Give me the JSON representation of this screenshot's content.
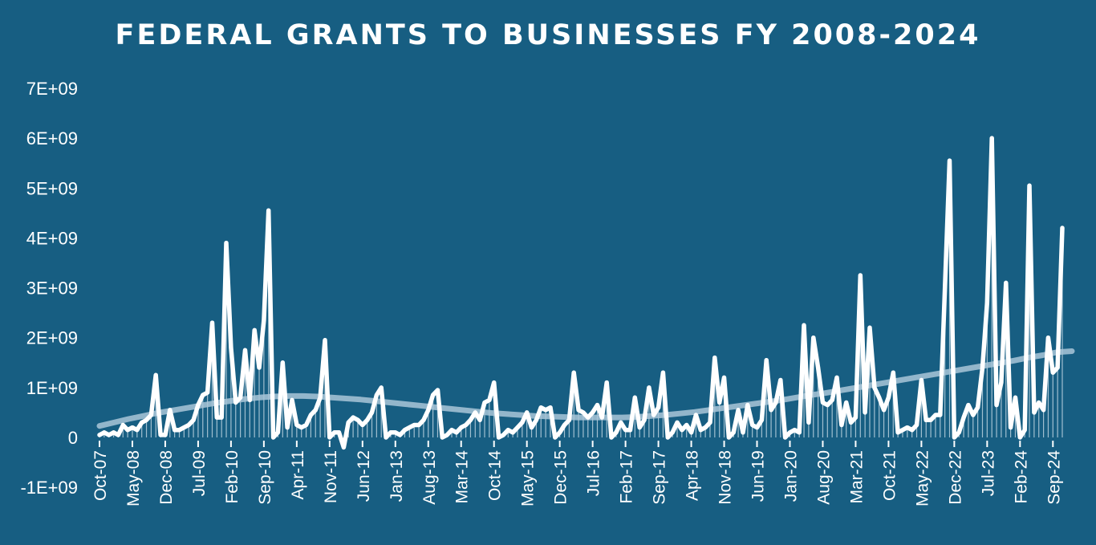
{
  "colors": {
    "background": "#175e82",
    "series_line": "#ffffff",
    "trend_line": "#a9c6d8",
    "drop_lines": "#cfe0ea"
  },
  "chart_data": {
    "type": "line",
    "title": "FEDERAL GRANTS TO BUSINESSES FY 2008-2024",
    "xlabel": "",
    "ylabel": "",
    "ylim": [
      -1000000000,
      7000000000
    ],
    "yticks": [
      7000000000,
      6000000000,
      5000000000,
      4000000000,
      3000000000,
      2000000000,
      1000000000,
      0,
      -1000000000
    ],
    "ytick_labels": [
      "7E+09",
      "6E+09",
      "5E+09",
      "4E+09",
      "3E+09",
      "2E+09",
      "1E+09",
      "0",
      "-1E+09"
    ],
    "xtick_labels": [
      "Oct-07",
      "May-08",
      "Dec-08",
      "Jul-09",
      "Feb-10",
      "Sep-10",
      "Apr-11",
      "Nov-11",
      "Jun-12",
      "Jan-13",
      "Aug-13",
      "Mar-14",
      "Oct-14",
      "May-15",
      "Dec-15",
      "Jul-16",
      "Feb-17",
      "Sep-17",
      "Apr-18",
      "Nov-18",
      "Jun-19",
      "Jan-20",
      "Aug-20",
      "Mar-21",
      "Oct-21",
      "May-22",
      "Dec-22",
      "Jul-23",
      "Feb-24",
      "Sep-24"
    ],
    "xtick_months": [
      0,
      7,
      14,
      21,
      28,
      35,
      42,
      49,
      56,
      63,
      70,
      77,
      84,
      91,
      98,
      105,
      112,
      119,
      126,
      133,
      140,
      147,
      154,
      161,
      168,
      175,
      182,
      189,
      196,
      203
    ],
    "grid": false,
    "legend": "none",
    "series": [
      {
        "x_start": "Oct-07",
        "frequency": "monthly",
        "values": [
          50000000,
          100000000,
          50000000,
          100000000,
          50000000,
          250000000,
          150000000,
          200000000,
          150000000,
          300000000,
          350000000,
          450000000,
          1250000000,
          50000000,
          50000000,
          550000000,
          150000000,
          150000000,
          200000000,
          250000000,
          350000000,
          650000000,
          850000000,
          900000000,
          2300000000,
          400000000,
          400000000,
          3900000000,
          1800000000,
          700000000,
          800000000,
          1750000000,
          750000000,
          2150000000,
          1400000000,
          2350000000,
          4550000000,
          0,
          100000000,
          1500000000,
          200000000,
          750000000,
          250000000,
          200000000,
          250000000,
          450000000,
          550000000,
          800000000,
          1950000000,
          0,
          100000000,
          100000000,
          -200000000,
          300000000,
          400000000,
          350000000,
          250000000,
          350000000,
          500000000,
          850000000,
          1000000000,
          0,
          100000000,
          100000000,
          50000000,
          150000000,
          200000000,
          250000000,
          250000000,
          350000000,
          550000000,
          850000000,
          950000000,
          0,
          50000000,
          150000000,
          100000000,
          200000000,
          250000000,
          350000000,
          500000000,
          350000000,
          700000000,
          750000000,
          1100000000,
          0,
          50000000,
          150000000,
          100000000,
          200000000,
          300000000,
          500000000,
          200000000,
          350000000,
          600000000,
          550000000,
          600000000,
          0,
          100000000,
          250000000,
          350000000,
          1300000000,
          550000000,
          500000000,
          400000000,
          500000000,
          650000000,
          400000000,
          1100000000,
          0,
          100000000,
          300000000,
          150000000,
          150000000,
          800000000,
          200000000,
          350000000,
          1000000000,
          450000000,
          600000000,
          1300000000,
          0,
          100000000,
          300000000,
          150000000,
          250000000,
          100000000,
          450000000,
          150000000,
          200000000,
          300000000,
          1600000000,
          700000000,
          1200000000,
          0,
          100000000,
          550000000,
          100000000,
          650000000,
          250000000,
          200000000,
          350000000,
          1550000000,
          550000000,
          700000000,
          1150000000,
          0,
          100000000,
          150000000,
          100000000,
          2250000000,
          300000000,
          2000000000,
          1400000000,
          700000000,
          650000000,
          750000000,
          1200000000,
          250000000,
          700000000,
          300000000,
          400000000,
          3250000000,
          500000000,
          2200000000,
          1000000000,
          800000000,
          550000000,
          800000000,
          1300000000,
          100000000,
          150000000,
          200000000,
          150000000,
          250000000,
          1150000000,
          350000000,
          350000000,
          450000000,
          450000000,
          3000000000,
          5550000000,
          0,
          100000000,
          400000000,
          650000000,
          450000000,
          600000000,
          1400000000,
          2700000000,
          6000000000,
          650000000,
          1100000000,
          3100000000,
          200000000,
          800000000,
          0,
          150000000,
          5050000000,
          500000000,
          700000000,
          550000000,
          2000000000,
          1300000000,
          1400000000,
          4200000000
        ]
      },
      {
        "name": "",
        "type": "trendline",
        "frequency": "monthly",
        "values": [
          230000000,
          300000000,
          370000000,
          430000000,
          490000000,
          540000000,
          590000000,
          640000000,
          690000000,
          730000000,
          770000000,
          800000000,
          820000000,
          830000000,
          830000000,
          820000000,
          800000000,
          780000000,
          760000000,
          730000000,
          700000000,
          670000000,
          640000000,
          610000000,
          580000000,
          550000000,
          520000000,
          490000000,
          470000000,
          450000000,
          430000000,
          420000000,
          410000000,
          400000000,
          400000000,
          400000000,
          400000000,
          410000000,
          430000000,
          450000000,
          480000000,
          510000000,
          550000000,
          590000000,
          630000000,
          670000000,
          710000000,
          750000000,
          800000000,
          850000000,
          890000000,
          940000000,
          990000000,
          1040000000,
          1090000000,
          1140000000,
          1190000000,
          1240000000,
          1290000000,
          1340000000,
          1390000000,
          1440000000,
          1490000000,
          1540000000,
          1600000000,
          1650000000,
          1710000000,
          1730000000
        ]
      }
    ]
  }
}
